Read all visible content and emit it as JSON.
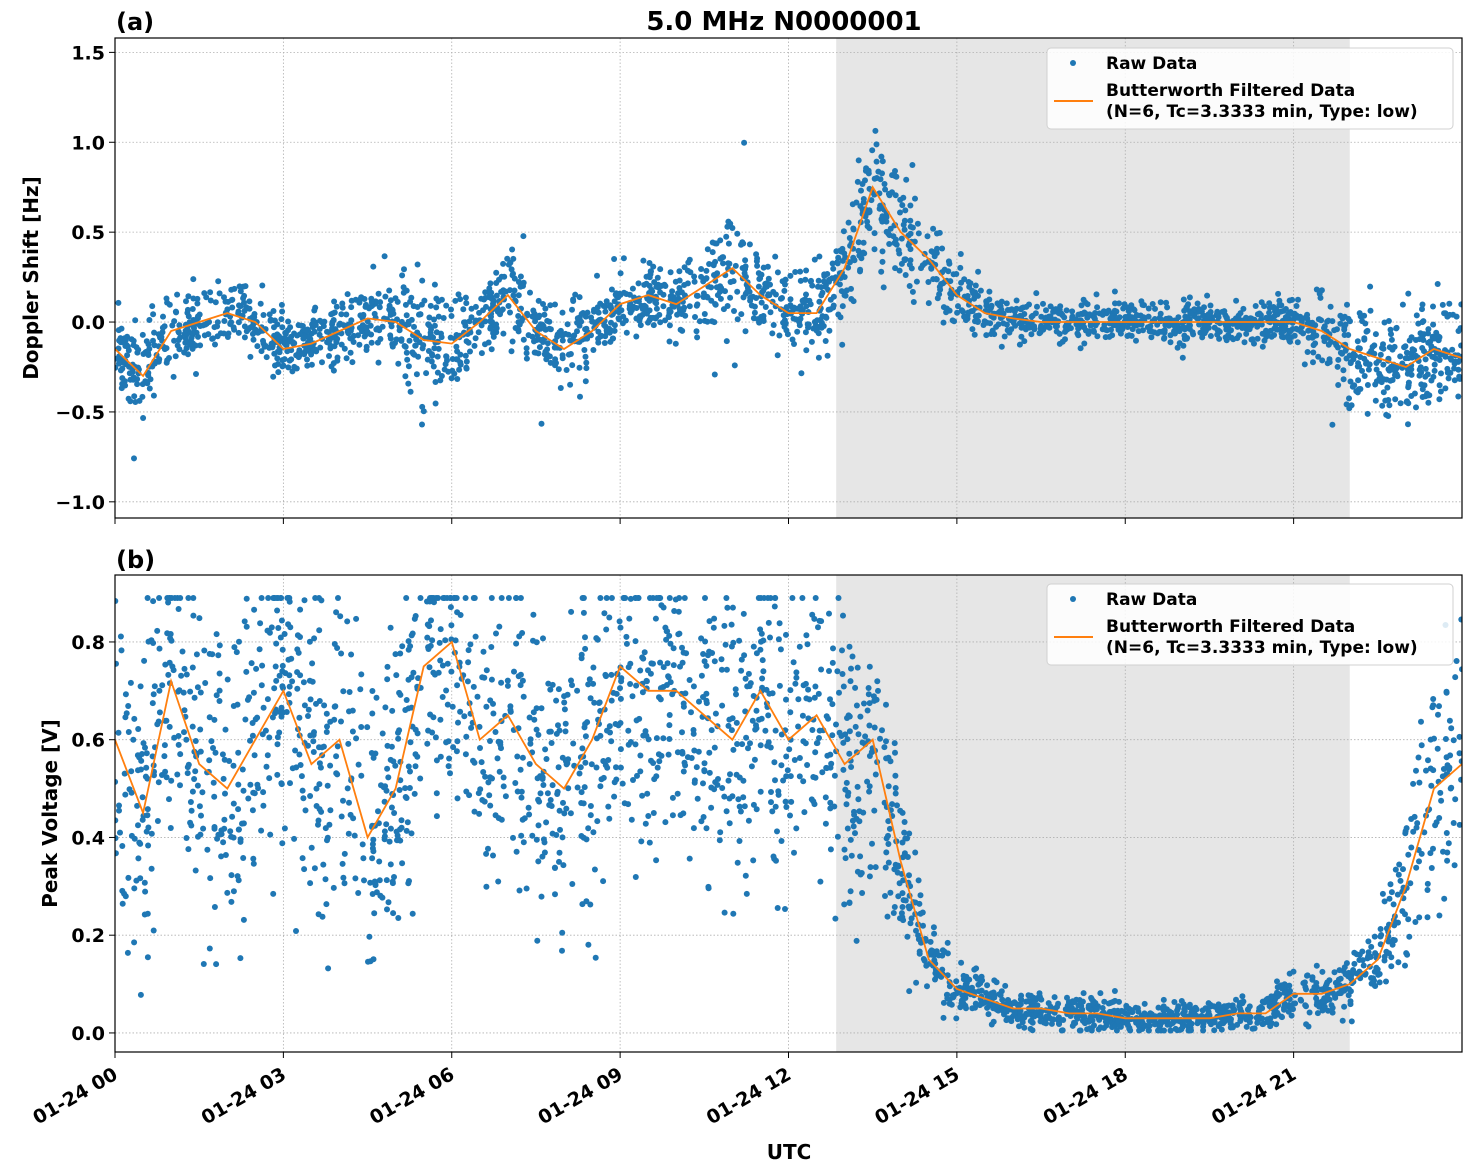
{
  "title": "5.0 MHz N0000001",
  "xlabel": "UTC",
  "x_tick_labels": [
    "01-24 00",
    "01-24 03",
    "01-24 06",
    "01-24 09",
    "01-24 12",
    "01-24 15",
    "01-24 18",
    "01-24 21"
  ],
  "x_tick_hours": [
    0,
    3,
    6,
    9,
    12,
    15,
    18,
    21
  ],
  "colors": {
    "raw": "#1f77b4",
    "filtered": "#ff7f0e",
    "shade": "#e6e6e6"
  },
  "chart_data": [
    {
      "panel_label": "(a)",
      "type": "scatter+line",
      "ylabel": "Doppler Shift [Hz]",
      "xlim_hours_utc": [
        0,
        24
      ],
      "ylim": [
        -1.09,
        1.58
      ],
      "y_ticks": [
        -1.0,
        -0.5,
        0.0,
        0.5,
        1.0,
        1.5
      ],
      "y_tick_labels": [
        "−1.0",
        "−0.5",
        "0.0",
        "0.5",
        "1.0",
        "1.5"
      ],
      "grid": true,
      "shaded_span_hours_utc": [
        12.85,
        22.0
      ],
      "legend": {
        "placement": "top-right",
        "raw": "Raw Data",
        "filtered_line1": "Butterworth Filtered Data",
        "filtered_line2": "(N=6, Tc=3.3333 min, Type: low)"
      },
      "x_hours_utc": [
        0,
        0.5,
        1,
        1.5,
        2,
        2.5,
        3,
        3.5,
        4,
        4.5,
        5,
        5.5,
        6,
        6.5,
        7,
        7.5,
        8,
        8.5,
        9,
        9.5,
        10,
        10.5,
        11,
        11.5,
        12,
        12.5,
        13,
        13.5,
        14,
        14.5,
        15,
        15.5,
        16,
        16.5,
        17,
        17.5,
        18,
        18.5,
        19,
        19.5,
        20,
        20.5,
        21,
        21.5,
        22,
        22.5,
        23,
        23.5,
        24
      ],
      "filtered": [
        -0.15,
        -0.3,
        -0.05,
        0.0,
        0.05,
        0.0,
        -0.15,
        -0.12,
        -0.05,
        0.02,
        0.0,
        -0.1,
        -0.12,
        0.0,
        0.15,
        -0.05,
        -0.15,
        -0.05,
        0.1,
        0.15,
        0.1,
        0.2,
        0.3,
        0.15,
        0.05,
        0.05,
        0.3,
        0.75,
        0.5,
        0.35,
        0.15,
        0.05,
        0.02,
        0.0,
        0.0,
        0.0,
        0.0,
        0.0,
        0.0,
        0.0,
        0.0,
        0.0,
        0.0,
        -0.05,
        -0.15,
        -0.2,
        -0.25,
        -0.15,
        -0.2
      ],
      "raw_spread": [
        0.22,
        0.3,
        0.2,
        0.18,
        0.2,
        0.18,
        0.2,
        0.18,
        0.2,
        0.2,
        0.25,
        0.45,
        0.25,
        0.2,
        0.25,
        0.22,
        0.25,
        0.2,
        0.22,
        0.22,
        0.22,
        0.25,
        0.35,
        0.25,
        0.25,
        0.25,
        0.3,
        0.45,
        0.35,
        0.25,
        0.2,
        0.15,
        0.12,
        0.12,
        0.12,
        0.12,
        0.12,
        0.12,
        0.12,
        0.12,
        0.12,
        0.12,
        0.15,
        0.25,
        0.3,
        0.3,
        0.3,
        0.3,
        0.3
      ]
    },
    {
      "panel_label": "(b)",
      "type": "scatter+line",
      "ylabel": "Peak Voltage [V]",
      "xlim_hours_utc": [
        0,
        24
      ],
      "ylim": [
        -0.039,
        0.937
      ],
      "y_ticks": [
        0.0,
        0.2,
        0.4,
        0.6,
        0.8
      ],
      "y_tick_labels": [
        "0.0",
        "0.2",
        "0.4",
        "0.6",
        "0.8"
      ],
      "grid": true,
      "shaded_span_hours_utc": [
        12.85,
        22.0
      ],
      "legend": {
        "placement": "top-right",
        "raw": "Raw Data",
        "filtered_line1": "Butterworth Filtered Data",
        "filtered_line2": "(N=6, Tc=3.3333 min, Type: low)"
      },
      "x_hours_utc": [
        0,
        0.5,
        1,
        1.5,
        2,
        2.5,
        3,
        3.5,
        4,
        4.5,
        5,
        5.5,
        6,
        6.5,
        7,
        7.5,
        8,
        8.5,
        9,
        9.5,
        10,
        10.5,
        11,
        11.5,
        12,
        12.5,
        13,
        13.5,
        14,
        14.5,
        15,
        15.5,
        16,
        16.5,
        17,
        17.5,
        18,
        18.5,
        19,
        19.5,
        20,
        20.5,
        21,
        21.5,
        22,
        22.5,
        23,
        23.5,
        24
      ],
      "filtered": [
        0.6,
        0.45,
        0.72,
        0.55,
        0.5,
        0.6,
        0.7,
        0.55,
        0.6,
        0.4,
        0.5,
        0.75,
        0.8,
        0.6,
        0.65,
        0.55,
        0.5,
        0.6,
        0.75,
        0.7,
        0.7,
        0.65,
        0.6,
        0.7,
        0.6,
        0.65,
        0.55,
        0.6,
        0.35,
        0.15,
        0.09,
        0.07,
        0.05,
        0.05,
        0.04,
        0.04,
        0.03,
        0.03,
        0.03,
        0.03,
        0.04,
        0.04,
        0.08,
        0.08,
        0.1,
        0.15,
        0.3,
        0.5,
        0.55
      ],
      "raw_spread": [
        0.35,
        0.35,
        0.35,
        0.35,
        0.35,
        0.35,
        0.35,
        0.35,
        0.35,
        0.35,
        0.35,
        0.35,
        0.35,
        0.35,
        0.35,
        0.35,
        0.35,
        0.35,
        0.35,
        0.35,
        0.35,
        0.35,
        0.35,
        0.35,
        0.35,
        0.35,
        0.35,
        0.3,
        0.2,
        0.1,
        0.06,
        0.05,
        0.04,
        0.04,
        0.04,
        0.04,
        0.035,
        0.035,
        0.035,
        0.035,
        0.04,
        0.04,
        0.06,
        0.06,
        0.07,
        0.1,
        0.2,
        0.3,
        0.3
      ],
      "raw_clip": [
        0.005,
        0.89
      ]
    }
  ]
}
